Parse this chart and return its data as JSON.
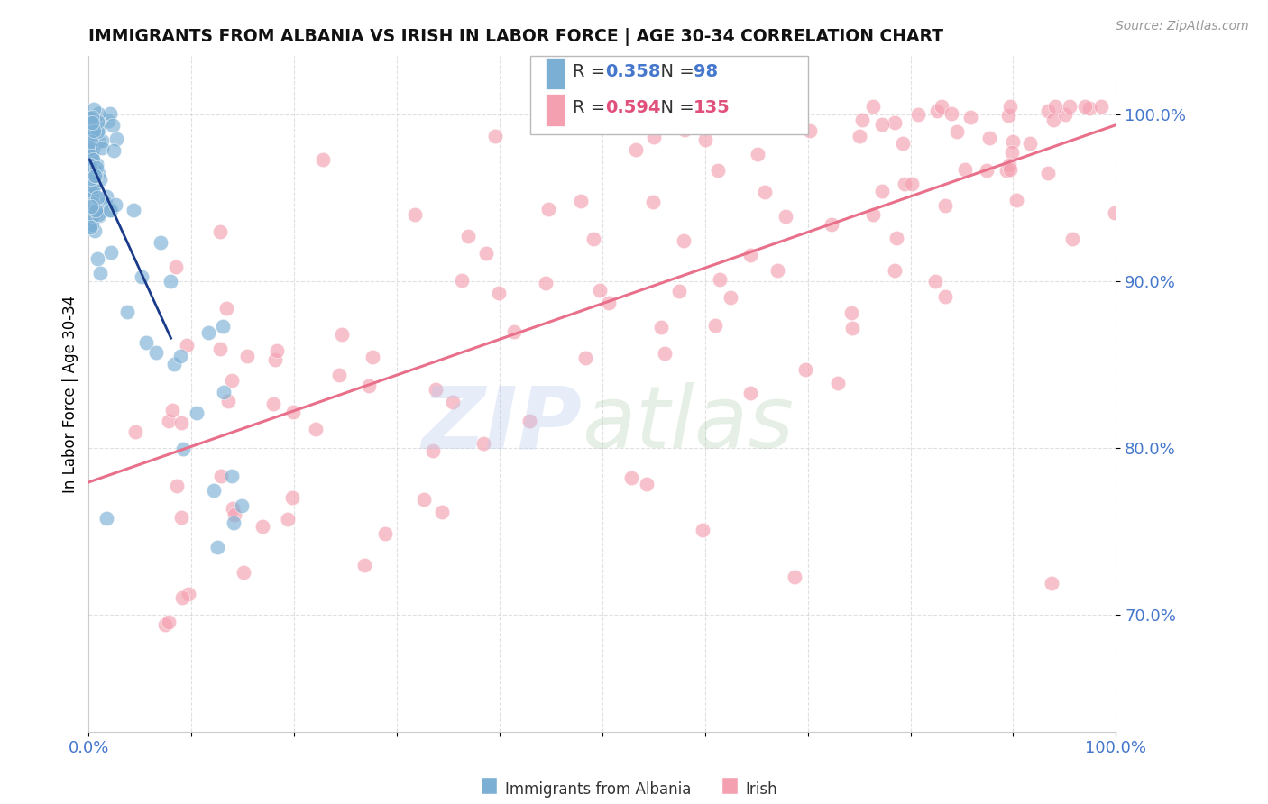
{
  "title": "IMMIGRANTS FROM ALBANIA VS IRISH IN LABOR FORCE | AGE 30-34 CORRELATION CHART",
  "source": "Source: ZipAtlas.com",
  "ylabel": "In Labor Force | Age 30-34",
  "xlim": [
    0.0,
    1.0
  ],
  "ylim": [
    0.63,
    1.035
  ],
  "yticks": [
    0.7,
    0.8,
    0.9,
    1.0
  ],
  "ytick_labels": [
    "70.0%",
    "80.0%",
    "90.0%",
    "100.0%"
  ],
  "albania_R": 0.358,
  "albania_N": 98,
  "irish_R": 0.594,
  "irish_N": 135,
  "albania_color": "#7BAFD4",
  "irish_color": "#F4A0B0",
  "albania_line_color": "#1A3A8A",
  "irish_line_color": "#E8708A",
  "albania_marker_edge": "#5599CC",
  "irish_marker_edge": "#EE8899"
}
